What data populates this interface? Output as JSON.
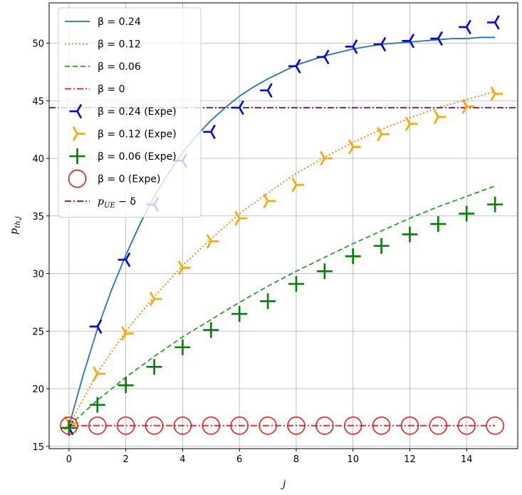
{
  "chart_data": {
    "type": "line",
    "xlabel": "j",
    "ylabel": "p_th,j",
    "xlim": [
      -0.7,
      15.8
    ],
    "ylim": [
      14.8,
      53.5
    ],
    "xticks": [
      0,
      2,
      4,
      6,
      8,
      10,
      12,
      14
    ],
    "yticks": [
      15,
      20,
      25,
      30,
      35,
      40,
      45,
      50
    ],
    "grid": true,
    "legend_position": "top-left",
    "series": [
      {
        "name": "β = 0.24",
        "kind": "line",
        "style": "solid",
        "color": "#1f77b4",
        "x": [
          0,
          0.5,
          1,
          1.5,
          2,
          2.5,
          3,
          3.5,
          4,
          4.5,
          5,
          5.5,
          6,
          6.5,
          7,
          7.5,
          8,
          8.5,
          9,
          9.5,
          10,
          10.5,
          11,
          11.5,
          12,
          12.5,
          13,
          13.5,
          14,
          14.5,
          15
        ],
        "y": [
          16.8,
          21.2,
          25.2,
          28.6,
          31.6,
          34.3,
          36.7,
          38.7,
          40.5,
          42.0,
          43.3,
          44.4,
          45.4,
          46.2,
          46.9,
          47.5,
          48.1,
          48.5,
          48.9,
          49.2,
          49.5,
          49.7,
          49.9,
          50.0,
          50.1,
          50.2,
          50.3,
          50.4,
          50.4,
          50.5,
          50.5
        ]
      },
      {
        "name": "β = 0.12",
        "kind": "line",
        "style": "dotted",
        "color": "#ff7f0e",
        "x": [
          0,
          1,
          2,
          3,
          4,
          5,
          6,
          7,
          8,
          9,
          10,
          11,
          12,
          13,
          14,
          15
        ],
        "y": [
          16.8,
          21.4,
          25.0,
          28.0,
          30.7,
          33.0,
          35.2,
          37.0,
          38.7,
          40.1,
          41.4,
          42.5,
          43.5,
          44.4,
          45.1,
          45.8
        ]
      },
      {
        "name": "β = 0.06",
        "kind": "line",
        "style": "dashed",
        "color": "#2ca02c",
        "x": [
          0,
          1,
          2,
          3,
          4,
          5,
          6,
          7,
          8,
          9,
          10,
          11,
          12,
          13,
          14,
          15
        ],
        "y": [
          16.8,
          19.0,
          21.0,
          22.8,
          24.5,
          26.0,
          27.5,
          28.9,
          30.2,
          31.4,
          32.6,
          33.7,
          34.8,
          35.8,
          36.7,
          37.6
        ]
      },
      {
        "name": "β = 0",
        "kind": "line",
        "style": "dashdot",
        "color": "#d62728",
        "x": [
          0,
          15
        ],
        "y": [
          16.8,
          16.8
        ]
      },
      {
        "name": "β = 0.24 (Expe)",
        "kind": "marker",
        "marker": "tri_left",
        "color": "#0000ff",
        "x": [
          0,
          1,
          2,
          3,
          4,
          5,
          6,
          7,
          8,
          9,
          10,
          11,
          12,
          13,
          14,
          15
        ],
        "y": [
          16.6,
          25.4,
          31.2,
          36.0,
          39.8,
          42.3,
          44.4,
          45.9,
          48.0,
          48.8,
          49.7,
          49.9,
          50.2,
          50.4,
          51.4,
          51.8
        ]
      },
      {
        "name": "β = 0.12 (Expe)",
        "kind": "marker",
        "marker": "tri_right",
        "color": "#ffa500",
        "x": [
          0,
          1,
          2,
          3,
          4,
          5,
          6,
          7,
          8,
          9,
          10,
          11,
          12,
          13,
          14,
          15
        ],
        "y": [
          17.0,
          21.3,
          24.8,
          27.8,
          30.5,
          32.8,
          34.8,
          36.3,
          37.7,
          40.0,
          41.0,
          42.1,
          43.0,
          43.6,
          44.5,
          45.6
        ]
      },
      {
        "name": "β = 0.06 (Expe)",
        "kind": "marker",
        "marker": "plus",
        "color": "#008000",
        "x": [
          0,
          1,
          2,
          3,
          4,
          5,
          6,
          7,
          8,
          9,
          10,
          11,
          12,
          13,
          14,
          15
        ],
        "y": [
          16.6,
          18.6,
          20.3,
          21.9,
          23.6,
          25.1,
          26.5,
          27.6,
          29.1,
          30.2,
          31.5,
          32.4,
          33.4,
          34.3,
          35.2,
          36.0
        ]
      },
      {
        "name": "β = 0 (Expe)",
        "kind": "marker",
        "marker": "circle",
        "color": "#ff0000",
        "x": [
          0,
          1,
          2,
          3,
          4,
          5,
          6,
          7,
          8,
          9,
          10,
          11,
          12,
          13,
          14,
          15
        ],
        "y": [
          16.8,
          16.8,
          16.8,
          16.8,
          16.8,
          16.8,
          16.8,
          16.8,
          16.8,
          16.8,
          16.8,
          16.8,
          16.8,
          16.8,
          16.8,
          16.8
        ]
      },
      {
        "name": "p_UE − δ",
        "kind": "hline",
        "style": "dashdot",
        "color": "#800080",
        "y": 44.4
      }
    ]
  }
}
